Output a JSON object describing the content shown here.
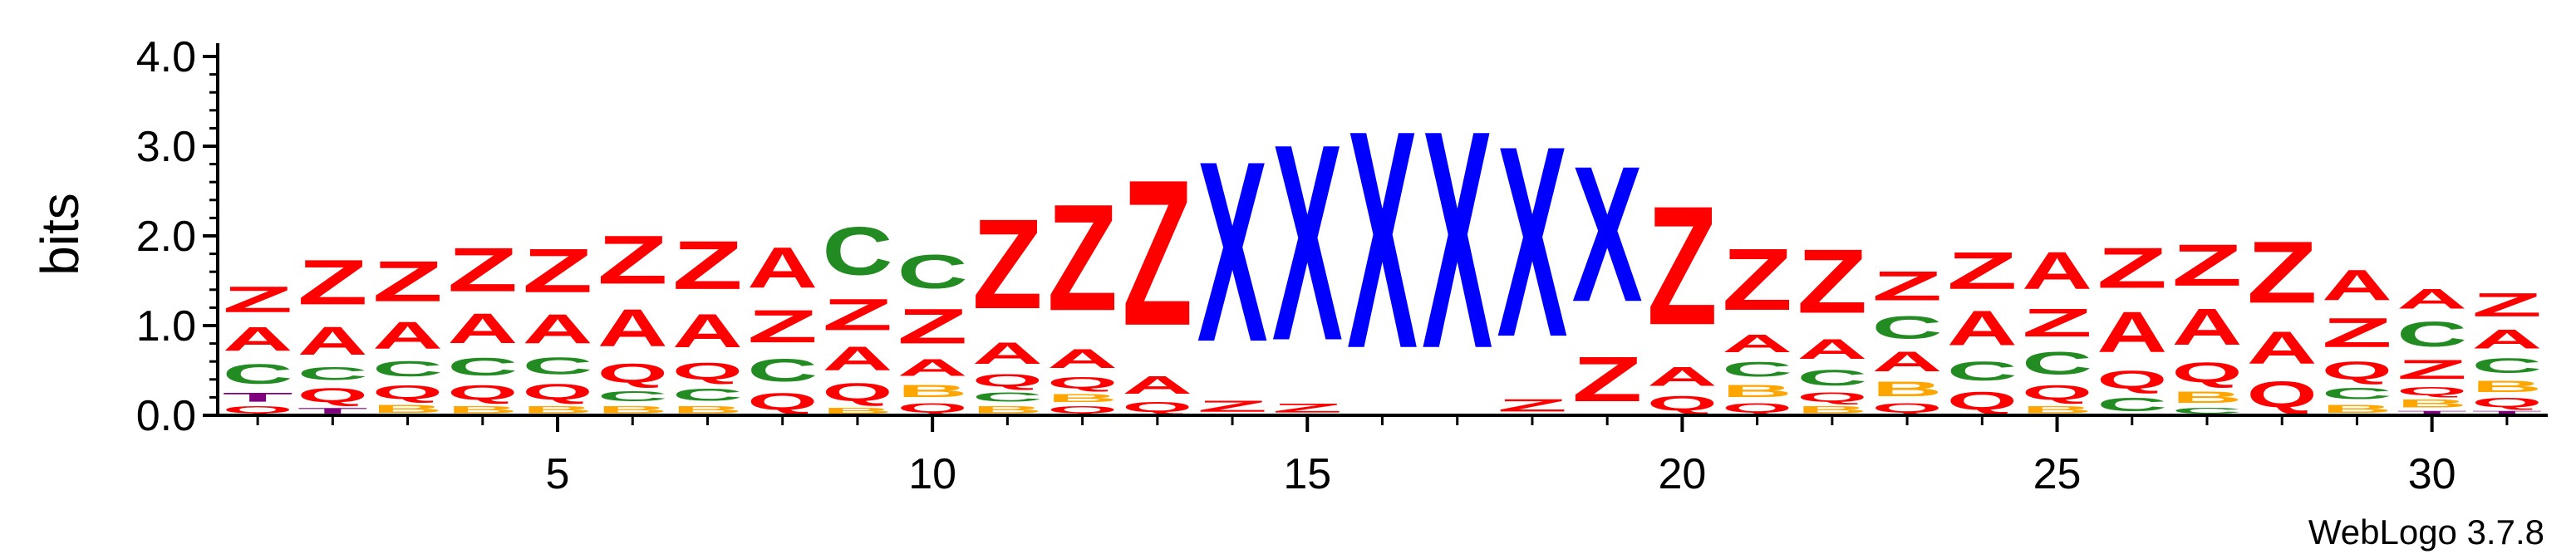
{
  "chart_data": {
    "type": "sequence-logo",
    "ylabel": "bits",
    "ylim": [
      0,
      4.0
    ],
    "y_ticks": [
      {
        "value": 0,
        "label": "0.0"
      },
      {
        "value": 1,
        "label": "1.0"
      },
      {
        "value": 2,
        "label": "2.0"
      },
      {
        "value": 3,
        "label": "3.0"
      },
      {
        "value": 4,
        "label": "4.0"
      }
    ],
    "x_range": [
      1,
      31
    ],
    "x_ticks": [
      {
        "value": 5,
        "label": "5"
      },
      {
        "value": 10,
        "label": "10"
      },
      {
        "value": 15,
        "label": "15"
      },
      {
        "value": 20,
        "label": "20"
      },
      {
        "value": 25,
        "label": "25"
      },
      {
        "value": 30,
        "label": "30"
      }
    ],
    "watermark": "WebLogo 3.7.8",
    "colors": {
      "Z": "#ff0000",
      "A": "#ff0000",
      "Q": "#ff0000",
      "C": "#228b22",
      "B": "#ffa500",
      "X": "#0000ff",
      "T": "#800080"
    },
    "positions": [
      {
        "pos": 1,
        "stack": [
          {
            "l": "Q",
            "h": 0.12
          },
          {
            "l": "T",
            "h": 0.16
          },
          {
            "l": "C",
            "h": 0.36
          },
          {
            "l": "A",
            "h": 0.42
          },
          {
            "l": "Z",
            "h": 0.46
          }
        ]
      },
      {
        "pos": 2,
        "stack": [
          {
            "l": "T",
            "h": 0.1
          },
          {
            "l": "Q",
            "h": 0.25
          },
          {
            "l": "C",
            "h": 0.23
          },
          {
            "l": "A",
            "h": 0.5
          },
          {
            "l": "Z",
            "h": 0.8
          }
        ]
      },
      {
        "pos": 3,
        "stack": [
          {
            "l": "B",
            "h": 0.14
          },
          {
            "l": "Q",
            "h": 0.24
          },
          {
            "l": "C",
            "h": 0.27
          },
          {
            "l": "A",
            "h": 0.48
          },
          {
            "l": "Z",
            "h": 0.72
          }
        ]
      },
      {
        "pos": 4,
        "stack": [
          {
            "l": "B",
            "h": 0.12
          },
          {
            "l": "Q",
            "h": 0.26
          },
          {
            "l": "C",
            "h": 0.32
          },
          {
            "l": "A",
            "h": 0.53
          },
          {
            "l": "Z",
            "h": 0.78
          }
        ]
      },
      {
        "pos": 5,
        "stack": [
          {
            "l": "B",
            "h": 0.12
          },
          {
            "l": "Q",
            "h": 0.28
          },
          {
            "l": "C",
            "h": 0.3
          },
          {
            "l": "A",
            "h": 0.52
          },
          {
            "l": "Z",
            "h": 0.78
          }
        ]
      },
      {
        "pos": 6,
        "stack": [
          {
            "l": "B",
            "h": 0.12
          },
          {
            "l": "C",
            "h": 0.18
          },
          {
            "l": "Q",
            "h": 0.34
          },
          {
            "l": "A",
            "h": 0.66
          },
          {
            "l": "Z",
            "h": 0.86
          }
        ]
      },
      {
        "pos": 7,
        "stack": [
          {
            "l": "B",
            "h": 0.12
          },
          {
            "l": "C",
            "h": 0.22
          },
          {
            "l": "Q",
            "h": 0.3
          },
          {
            "l": "A",
            "h": 0.6
          },
          {
            "l": "Z",
            "h": 0.86
          }
        ]
      },
      {
        "pos": 8,
        "stack": [
          {
            "l": "Q",
            "h": 0.3
          },
          {
            "l": "C",
            "h": 0.4
          },
          {
            "l": "Z",
            "h": 0.58
          },
          {
            "l": "A",
            "h": 0.72
          }
        ]
      },
      {
        "pos": 9,
        "stack": [
          {
            "l": "B",
            "h": 0.1
          },
          {
            "l": "Q",
            "h": 0.32
          },
          {
            "l": "A",
            "h": 0.42
          },
          {
            "l": "Z",
            "h": 0.56
          },
          {
            "l": "C",
            "h": 0.86
          }
        ]
      },
      {
        "pos": 10,
        "stack": [
          {
            "l": "Q",
            "h": 0.16
          },
          {
            "l": "B",
            "h": 0.22
          },
          {
            "l": "A",
            "h": 0.3
          },
          {
            "l": "Z",
            "h": 0.62
          },
          {
            "l": "C",
            "h": 0.6
          }
        ]
      },
      {
        "pos": 11,
        "stack": [
          {
            "l": "B",
            "h": 0.12
          },
          {
            "l": "C",
            "h": 0.16
          },
          {
            "l": "Q",
            "h": 0.22
          },
          {
            "l": "A",
            "h": 0.38
          },
          {
            "l": "Z",
            "h": 1.6
          }
        ]
      },
      {
        "pos": 12,
        "stack": [
          {
            "l": "Q",
            "h": 0.12
          },
          {
            "l": "B",
            "h": 0.14
          },
          {
            "l": "Q",
            "h": 0.2
          },
          {
            "l": "A",
            "h": 0.34
          },
          {
            "l": "Z",
            "h": 1.9
          }
        ]
      },
      {
        "pos": 13,
        "stack": [
          {
            "l": "Q",
            "h": 0.18
          },
          {
            "l": "A",
            "h": 0.32
          },
          {
            "l": "Z",
            "h": 2.6
          }
        ]
      },
      {
        "pos": 14,
        "stack": [
          {
            "l": "Z",
            "h": 0.2
          },
          {
            "l": "X",
            "h": 3.22
          }
        ]
      },
      {
        "pos": 15,
        "stack": [
          {
            "l": "Z",
            "h": 0.16
          },
          {
            "l": "X",
            "h": 3.5
          }
        ]
      },
      {
        "pos": 16,
        "stack": [
          {
            "l": "X",
            "h": 3.88
          }
        ]
      },
      {
        "pos": 17,
        "stack": [
          {
            "l": "X",
            "h": 3.88
          }
        ]
      },
      {
        "pos": 18,
        "stack": [
          {
            "l": "Z",
            "h": 0.22
          },
          {
            "l": "X",
            "h": 3.4
          }
        ]
      },
      {
        "pos": 19,
        "stack": [
          {
            "l": "Z",
            "h": 0.8
          },
          {
            "l": "X",
            "h": 2.42
          }
        ]
      },
      {
        "pos": 20,
        "stack": [
          {
            "l": "Q",
            "h": 0.26
          },
          {
            "l": "A",
            "h": 0.34
          },
          {
            "l": "Z",
            "h": 2.12
          }
        ]
      },
      {
        "pos": 21,
        "stack": [
          {
            "l": "Q",
            "h": 0.16
          },
          {
            "l": "B",
            "h": 0.22
          },
          {
            "l": "C",
            "h": 0.26
          },
          {
            "l": "A",
            "h": 0.32
          },
          {
            "l": "Z",
            "h": 1.1
          }
        ]
      },
      {
        "pos": 22,
        "stack": [
          {
            "l": "B",
            "h": 0.12
          },
          {
            "l": "Q",
            "h": 0.16
          },
          {
            "l": "C",
            "h": 0.28
          },
          {
            "l": "A",
            "h": 0.36
          },
          {
            "l": "Z",
            "h": 1.14
          }
        ]
      },
      {
        "pos": 23,
        "stack": [
          {
            "l": "Q",
            "h": 0.16
          },
          {
            "l": "B",
            "h": 0.26
          },
          {
            "l": "A",
            "h": 0.36
          },
          {
            "l": "C",
            "h": 0.4
          },
          {
            "l": "Z",
            "h": 0.52
          }
        ]
      },
      {
        "pos": 24,
        "stack": [
          {
            "l": "Q",
            "h": 0.32
          },
          {
            "l": "C",
            "h": 0.34
          },
          {
            "l": "A",
            "h": 0.62
          },
          {
            "l": "Z",
            "h": 0.66
          }
        ]
      },
      {
        "pos": 25,
        "stack": [
          {
            "l": "B",
            "h": 0.12
          },
          {
            "l": "Q",
            "h": 0.26
          },
          {
            "l": "C",
            "h": 0.4
          },
          {
            "l": "Z",
            "h": 0.5
          },
          {
            "l": "A",
            "h": 0.66
          }
        ]
      },
      {
        "pos": 26,
        "stack": [
          {
            "l": "C",
            "h": 0.24
          },
          {
            "l": "Q",
            "h": 0.32
          },
          {
            "l": "A",
            "h": 0.72
          },
          {
            "l": "Z",
            "h": 0.72
          }
        ]
      },
      {
        "pos": 27,
        "stack": [
          {
            "l": "C",
            "h": 0.1
          },
          {
            "l": "B",
            "h": 0.2
          },
          {
            "l": "Q",
            "h": 0.36
          },
          {
            "l": "A",
            "h": 0.64
          },
          {
            "l": "Z",
            "h": 0.74
          }
        ]
      },
      {
        "pos": 28,
        "stack": [
          {
            "l": "Q",
            "h": 0.46
          },
          {
            "l": "A",
            "h": 0.58
          },
          {
            "l": "Z",
            "h": 1.1
          }
        ]
      },
      {
        "pos": 29,
        "stack": [
          {
            "l": "B",
            "h": 0.14
          },
          {
            "l": "C",
            "h": 0.2
          },
          {
            "l": "Q",
            "h": 0.32
          },
          {
            "l": "Z",
            "h": 0.52
          },
          {
            "l": "A",
            "h": 0.54
          }
        ]
      },
      {
        "pos": 30,
        "stack": [
          {
            "l": "T",
            "h": 0.06
          },
          {
            "l": "B",
            "h": 0.14
          },
          {
            "l": "Q",
            "h": 0.14
          },
          {
            "l": "Z",
            "h": 0.34
          },
          {
            "l": "C",
            "h": 0.44
          },
          {
            "l": "A",
            "h": 0.36
          }
        ]
      },
      {
        "pos": 31,
        "stack": [
          {
            "l": "T",
            "h": 0.06
          },
          {
            "l": "Q",
            "h": 0.16
          },
          {
            "l": "B",
            "h": 0.2
          },
          {
            "l": "C",
            "h": 0.26
          },
          {
            "l": "A",
            "h": 0.34
          },
          {
            "l": "Z",
            "h": 0.42
          }
        ]
      }
    ]
  }
}
